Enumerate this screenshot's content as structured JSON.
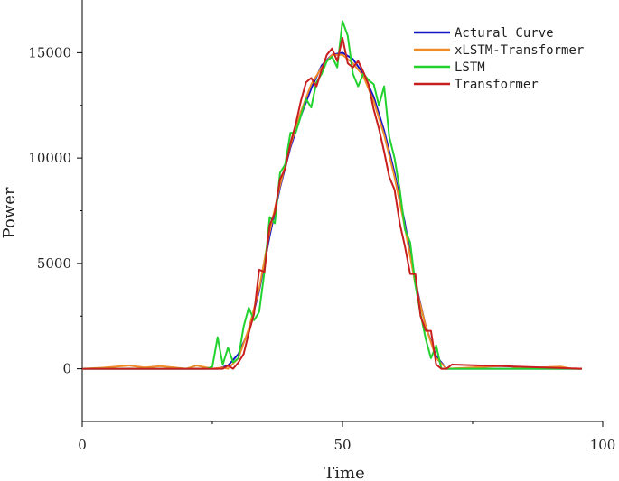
{
  "chart_data": {
    "type": "line",
    "title": "",
    "xlabel": "Time",
    "ylabel": "Power",
    "xlim": [
      0,
      100
    ],
    "ylim": [
      -2500,
      17500
    ],
    "xticks": [
      0,
      50,
      100
    ],
    "yticks": [
      0,
      5000,
      10000,
      15000
    ],
    "xtick_labels": [
      "0",
      "50",
      "100"
    ],
    "ytick_labels": [
      "0",
      "5000",
      "10000",
      "15000"
    ],
    "grid": false,
    "legend_position": "top-right",
    "series": [
      {
        "name": "Actural Curve",
        "color": "#1515c8",
        "x": [
          0,
          26,
          28,
          30,
          32,
          34,
          36,
          38,
          40,
          42,
          44,
          46,
          48,
          50,
          52,
          54,
          56,
          58,
          60,
          62,
          64,
          66,
          68,
          70,
          96
        ],
        "y": [
          0,
          0,
          150,
          700,
          1800,
          3700,
          6300,
          8600,
          10500,
          12000,
          13300,
          14400,
          14900,
          15000,
          14700,
          14000,
          12900,
          11300,
          9300,
          6900,
          4100,
          2000,
          600,
          0,
          0
        ]
      },
      {
        "name": "xLSTM-Transformer",
        "color": "#f08c28",
        "x": [
          0,
          4,
          9,
          12,
          15,
          20,
          22,
          25,
          27,
          28,
          30,
          32,
          34,
          36,
          38,
          40,
          42,
          44,
          46,
          48,
          50,
          52,
          54,
          56,
          58,
          60,
          62,
          64,
          66,
          68,
          70,
          74,
          82,
          84,
          88,
          92,
          94,
          96
        ],
        "y": [
          0,
          50,
          150,
          60,
          120,
          0,
          150,
          0,
          60,
          0,
          500,
          1900,
          3800,
          6500,
          8700,
          10600,
          12200,
          13500,
          14300,
          14900,
          14900,
          14500,
          13900,
          12700,
          11100,
          9100,
          6700,
          4000,
          2000,
          500,
          0,
          50,
          150,
          0,
          60,
          100,
          0,
          0
        ]
      },
      {
        "name": "LSTM",
        "color": "#22d22e",
        "x": [
          0,
          24,
          25,
          26,
          27,
          28,
          29,
          30,
          31,
          32,
          33,
          34,
          35,
          36,
          37,
          38,
          39,
          40,
          41,
          42,
          43,
          44,
          45,
          46,
          47,
          48,
          49,
          50,
          51,
          52,
          53,
          54,
          55,
          56,
          57,
          58,
          59,
          60,
          61,
          62,
          63,
          64,
          65,
          66,
          67,
          68,
          69,
          70,
          96
        ],
        "y": [
          0,
          0,
          100,
          1500,
          200,
          1000,
          300,
          500,
          2000,
          2900,
          2300,
          2700,
          4600,
          7200,
          6900,
          9300,
          9700,
          11200,
          11200,
          12000,
          12800,
          12400,
          13600,
          14000,
          14600,
          14800,
          14300,
          16500,
          15800,
          14000,
          13400,
          14000,
          13700,
          13500,
          12500,
          13400,
          11000,
          10000,
          8500,
          6600,
          6000,
          4000,
          2600,
          1400,
          500,
          1100,
          0,
          0,
          0
        ]
      },
      {
        "name": "Transformer",
        "color": "#c81e1e",
        "x": [
          0,
          27,
          28,
          29,
          30,
          31,
          32,
          33,
          34,
          35,
          36,
          37,
          38,
          39,
          40,
          41,
          42,
          43,
          44,
          45,
          46,
          47,
          48,
          49,
          50,
          51,
          52,
          53,
          54,
          55,
          56,
          57,
          58,
          59,
          60,
          61,
          62,
          63,
          64,
          65,
          66,
          67,
          68,
          69,
          70,
          71,
          96
        ],
        "y": [
          0,
          0,
          150,
          0,
          300,
          700,
          1700,
          2600,
          4700,
          4600,
          6800,
          7400,
          9000,
          9500,
          10700,
          11600,
          12700,
          13600,
          13800,
          13400,
          14200,
          14900,
          15200,
          14600,
          15700,
          14500,
          14300,
          14600,
          14100,
          13500,
          12300,
          11400,
          10300,
          9100,
          8500,
          6900,
          5800,
          4500,
          4500,
          2500,
          1800,
          1800,
          200,
          0,
          0,
          200,
          0
        ]
      }
    ]
  }
}
